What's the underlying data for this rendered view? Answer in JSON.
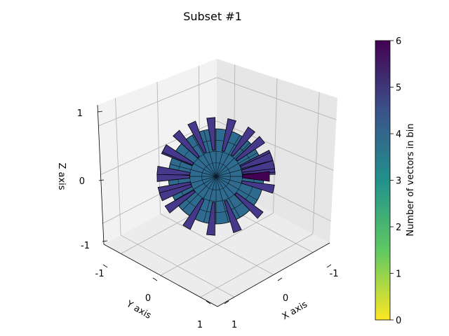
{
  "chart_data": {
    "type": "3d-polar-histogram",
    "title": "Subset #1",
    "axes": {
      "x": {
        "label": "X axis",
        "range": [
          -1,
          1
        ],
        "ticks": [
          "-1",
          "0",
          "1"
        ]
      },
      "y": {
        "label": "Y axis",
        "range": [
          -1,
          1
        ],
        "ticks": [
          "-1",
          "0",
          "1"
        ]
      },
      "z": {
        "label": "Z axis",
        "range": [
          -1,
          1
        ],
        "ticks": [
          "-1",
          "0",
          "1"
        ]
      }
    },
    "grid": true,
    "colorbar": {
      "label": "Number of vectors in bin",
      "range": [
        0,
        6
      ],
      "ticks": [
        "0",
        "1",
        "2",
        "3",
        "4",
        "5",
        "6"
      ],
      "colormap": "viridis_r",
      "stops": [
        "#fde725",
        "#5ec962",
        "#21918c",
        "#3b528b",
        "#440154"
      ]
    },
    "bins": {
      "count_4_color": "#2f6b8e",
      "count_5_color": "#46388a",
      "count_6_color": "#440154",
      "typical_count": 4,
      "max_count": 6,
      "bins_with_count_5": [
        {
          "azimuth_deg": 10,
          "elevation_deg": 5
        },
        {
          "azimuth_deg": 25,
          "elevation_deg": 20
        },
        {
          "azimuth_deg": 40,
          "elevation_deg": 35
        },
        {
          "azimuth_deg": 55,
          "elevation_deg": 45
        },
        {
          "azimuth_deg": 75,
          "elevation_deg": 60
        },
        {
          "azimuth_deg": 95,
          "elevation_deg": 70
        },
        {
          "azimuth_deg": 115,
          "elevation_deg": 62
        },
        {
          "azimuth_deg": 140,
          "elevation_deg": 55
        },
        {
          "azimuth_deg": 165,
          "elevation_deg": 30
        },
        {
          "azimuth_deg": 190,
          "elevation_deg": -15
        },
        {
          "azimuth_deg": 210,
          "elevation_deg": -35
        },
        {
          "azimuth_deg": 240,
          "elevation_deg": -55
        },
        {
          "azimuth_deg": 265,
          "elevation_deg": -65
        },
        {
          "azimuth_deg": 290,
          "elevation_deg": -55
        },
        {
          "azimuth_deg": 315,
          "elevation_deg": -35
        },
        {
          "azimuth_deg": 340,
          "elevation_deg": -10
        },
        {
          "azimuth_deg": 355,
          "elevation_deg": 10
        },
        {
          "azimuth_deg": 130,
          "elevation_deg": 15
        },
        {
          "azimuth_deg": 155,
          "elevation_deg": -5
        },
        {
          "azimuth_deg": 205,
          "elevation_deg": 10
        },
        {
          "azimuth_deg": 225,
          "elevation_deg": -10
        },
        {
          "azimuth_deg": 300,
          "elevation_deg": 15
        },
        {
          "azimuth_deg": 325,
          "elevation_deg": 25
        }
      ],
      "bins_with_count_6": [
        {
          "azimuth_deg": 0,
          "elevation_deg": 0
        }
      ]
    }
  }
}
